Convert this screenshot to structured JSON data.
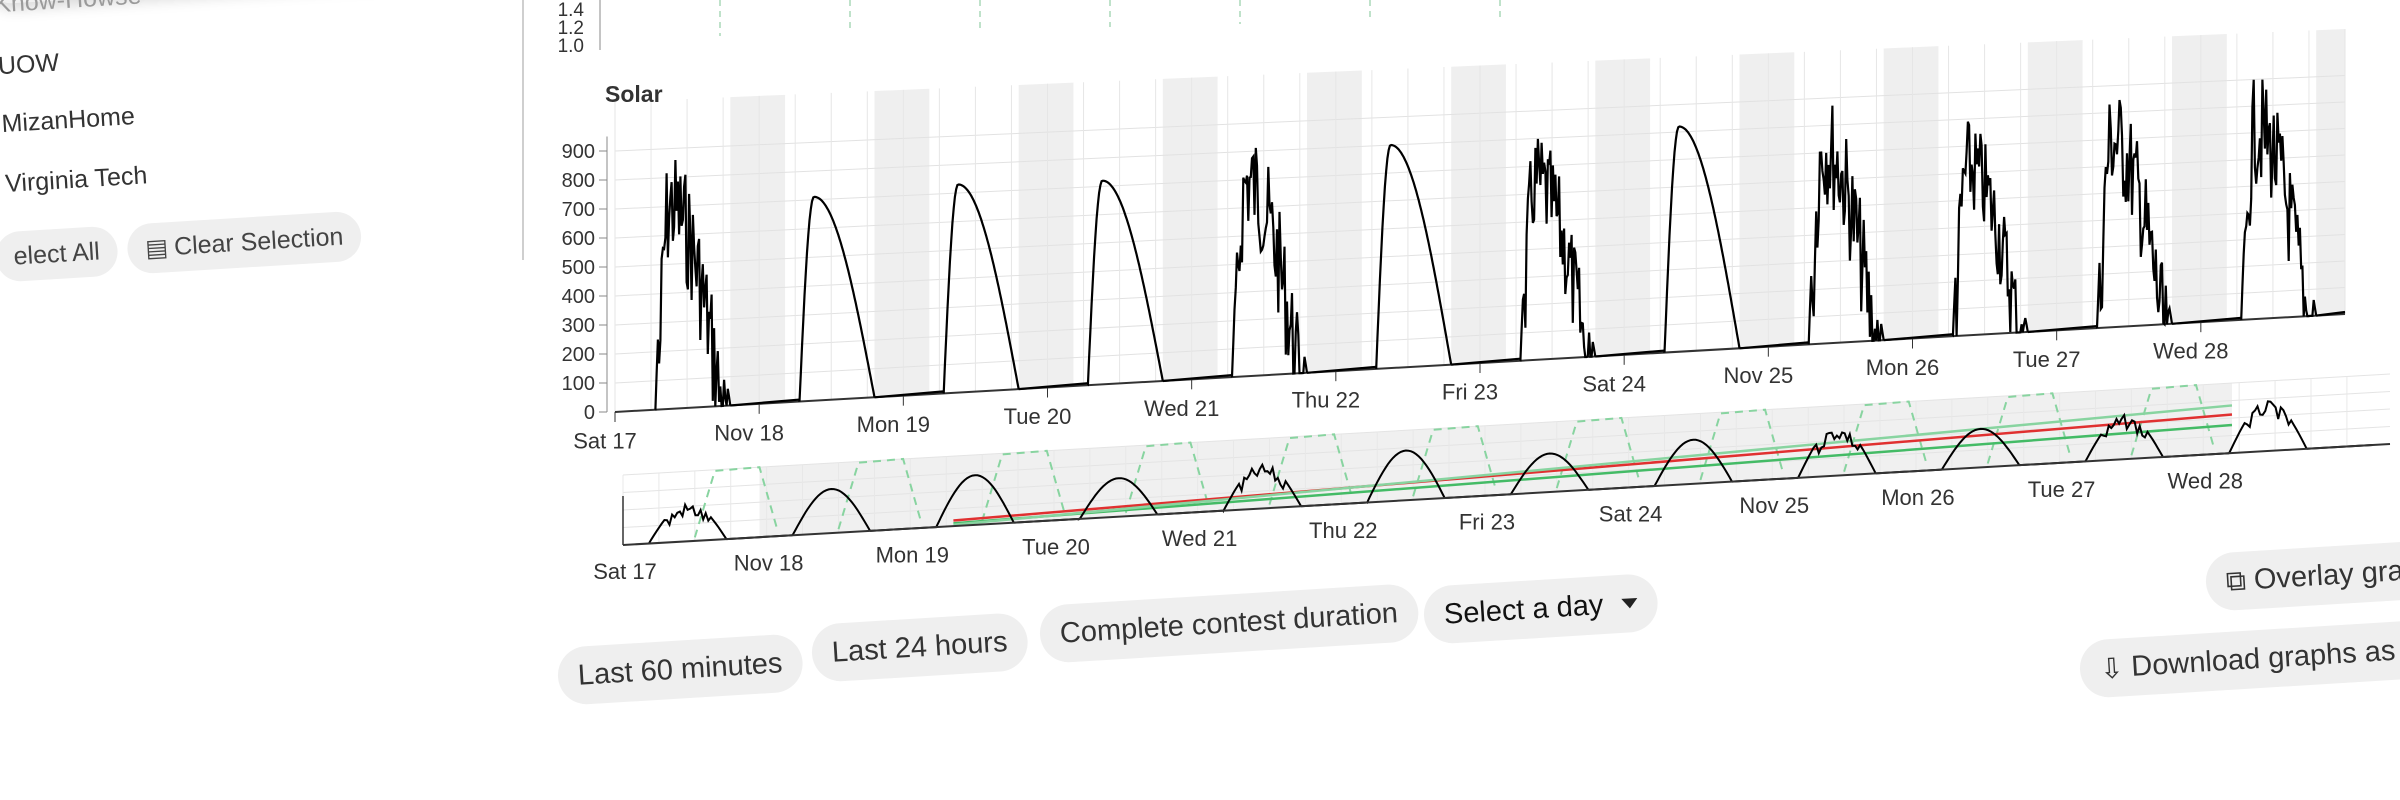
{
  "sidebar": {
    "teams": [
      "Know-Howse",
      "UOW",
      "MizanHome",
      "Virginia Tech"
    ],
    "select_all_label": "elect All",
    "clear_selection_label": "Clear Selection"
  },
  "controls": {
    "last60": "Last 60 minutes",
    "last24": "Last 24 hours",
    "complete": "Complete contest duration",
    "select_day": "Select a day",
    "overlay": "Overlay gra",
    "download": "Download graphs as i"
  },
  "chart_data": [
    {
      "type": "line",
      "title": "",
      "yticks_partial": [
        "1.4",
        "1.2",
        "1.0"
      ]
    },
    {
      "type": "line",
      "title": "Solar",
      "xlabel": "",
      "ylabel": "",
      "ylim": [
        0,
        1000
      ],
      "yticks": [
        0,
        100,
        200,
        300,
        400,
        500,
        600,
        700,
        800,
        900
      ],
      "x_ticks": [
        "Sat 17",
        "Nov 18",
        "Mon 19",
        "Tue 20",
        "Wed 21",
        "Thu 22",
        "Fri 23",
        "Sat 24",
        "Nov 25",
        "Mon 26",
        "Tue 27",
        "Wed 28"
      ],
      "grid": true,
      "night_shading": true,
      "series": [
        {
          "color": "#000000",
          "daily_peaks": [
            {
              "day": 0,
              "peak": 900,
              "noisy": true
            },
            {
              "day": 1,
              "peak": 710,
              "noisy": false
            },
            {
              "day": 2,
              "peak": 730,
              "noisy": false
            },
            {
              "day": 3,
              "peak": 720,
              "noisy": false
            },
            {
              "day": 4,
              "peak": 890,
              "noisy": true
            },
            {
              "day": 5,
              "peak": 800,
              "noisy": false
            },
            {
              "day": 6,
              "peak": 820,
              "noisy": true
            },
            {
              "day": 7,
              "peak": 820,
              "noisy": false
            },
            {
              "day": 8,
              "peak": 930,
              "noisy": true
            },
            {
              "day": 9,
              "peak": 800,
              "noisy": true
            },
            {
              "day": 10,
              "peak": 900,
              "noisy": true
            },
            {
              "day": 11,
              "peak": 920,
              "noisy": true
            }
          ]
        }
      ]
    },
    {
      "type": "line",
      "title": "",
      "role": "navigator",
      "x_ticks": [
        "Sat 17",
        "Nov 18",
        "Mon 19",
        "Tue 20",
        "Wed 21",
        "Thu 22",
        "Fri 23",
        "Sat 24",
        "Nov 25",
        "Mon 26",
        "Tue 27",
        "Wed 28"
      ],
      "series": [
        {
          "color": "#000000"
        },
        {
          "color": "#e03030"
        },
        {
          "color": "#44bb66"
        },
        {
          "color": "#88d4a0"
        }
      ]
    }
  ]
}
